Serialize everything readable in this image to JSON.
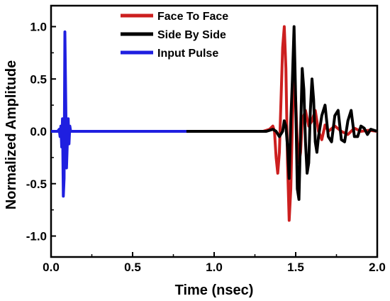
{
  "chart_data": {
    "type": "line",
    "title": "",
    "xlabel": "Time (nsec)",
    "ylabel": "Normalized Amplitude",
    "xlim": [
      0.0,
      2.0
    ],
    "ylim": [
      -1.2,
      1.2
    ],
    "xticks": [
      0.0,
      0.5,
      1.0,
      1.5,
      2.0
    ],
    "xtick_labels": [
      "0.0",
      "0.5",
      "1.0",
      "1.5",
      "2.0"
    ],
    "yticks": [
      -1.0,
      -0.5,
      0.0,
      0.5,
      1.0
    ],
    "ytick_labels": [
      "-1.0",
      "-0.5",
      "0.0",
      "0.5",
      "1.0"
    ],
    "grid": false,
    "legend_position": "top-center",
    "series": [
      {
        "name": "Face To Face",
        "color": "#cc1f1f",
        "x": [
          0.0,
          1.3,
          1.34,
          1.36,
          1.37,
          1.38,
          1.39,
          1.4,
          1.41,
          1.42,
          1.43,
          1.44,
          1.45,
          1.46,
          1.47,
          1.48,
          1.49,
          1.5,
          1.51,
          1.52,
          1.53,
          1.54,
          1.56,
          1.58,
          1.6,
          1.62,
          1.64,
          1.66,
          1.68,
          1.7,
          1.74,
          1.78,
          1.82,
          1.86,
          1.9,
          1.95,
          2.0
        ],
        "y": [
          0.0,
          0.0,
          0.02,
          0.05,
          0.0,
          -0.25,
          -0.4,
          -0.2,
          0.3,
          0.8,
          1.0,
          0.6,
          -0.3,
          -0.85,
          -0.55,
          0.1,
          0.5,
          0.3,
          -0.1,
          -0.3,
          -0.2,
          0.1,
          0.2,
          0.05,
          0.1,
          0.2,
          0.0,
          -0.08,
          0.06,
          0.0,
          0.05,
          0.0,
          -0.03,
          0.03,
          0.0,
          0.01,
          0.0
        ]
      },
      {
        "name": "Side By Side",
        "color": "#000000",
        "x": [
          0.0,
          1.32,
          1.36,
          1.38,
          1.4,
          1.42,
          1.43,
          1.44,
          1.45,
          1.46,
          1.47,
          1.48,
          1.49,
          1.5,
          1.51,
          1.52,
          1.53,
          1.54,
          1.55,
          1.56,
          1.57,
          1.58,
          1.59,
          1.6,
          1.61,
          1.62,
          1.63,
          1.64,
          1.66,
          1.68,
          1.7,
          1.72,
          1.74,
          1.76,
          1.78,
          1.8,
          1.82,
          1.84,
          1.86,
          1.88,
          1.9,
          1.92,
          1.94,
          1.96,
          1.98,
          2.0
        ],
        "y": [
          0.0,
          0.0,
          0.02,
          0.0,
          -0.05,
          0.0,
          0.1,
          0.05,
          -0.15,
          -0.45,
          0.1,
          0.5,
          1.0,
          0.3,
          -0.55,
          -0.65,
          0.0,
          0.6,
          0.4,
          -0.1,
          -0.4,
          -0.3,
          0.2,
          0.5,
          0.3,
          -0.1,
          -0.2,
          -0.05,
          0.15,
          0.25,
          -0.05,
          -0.1,
          0.15,
          0.2,
          -0.08,
          -0.1,
          0.1,
          0.2,
          -0.05,
          -0.05,
          0.05,
          0.03,
          -0.03,
          0.02,
          0.01,
          0.0
        ]
      },
      {
        "name": "Input Pulse",
        "color": "#1f1fe0",
        "x": [
          0.0,
          0.04,
          0.05,
          0.055,
          0.06,
          0.065,
          0.07,
          0.075,
          0.08,
          0.085,
          0.09,
          0.095,
          0.1,
          0.105,
          0.11,
          0.115,
          0.12,
          0.13,
          0.83
        ],
        "y": [
          0.0,
          0.0,
          0.02,
          -0.05,
          0.05,
          -0.15,
          0.12,
          -0.62,
          -0.45,
          0.95,
          0.3,
          -0.35,
          -0.1,
          0.12,
          -0.12,
          0.05,
          0.0,
          0.0,
          0.0
        ]
      }
    ]
  }
}
